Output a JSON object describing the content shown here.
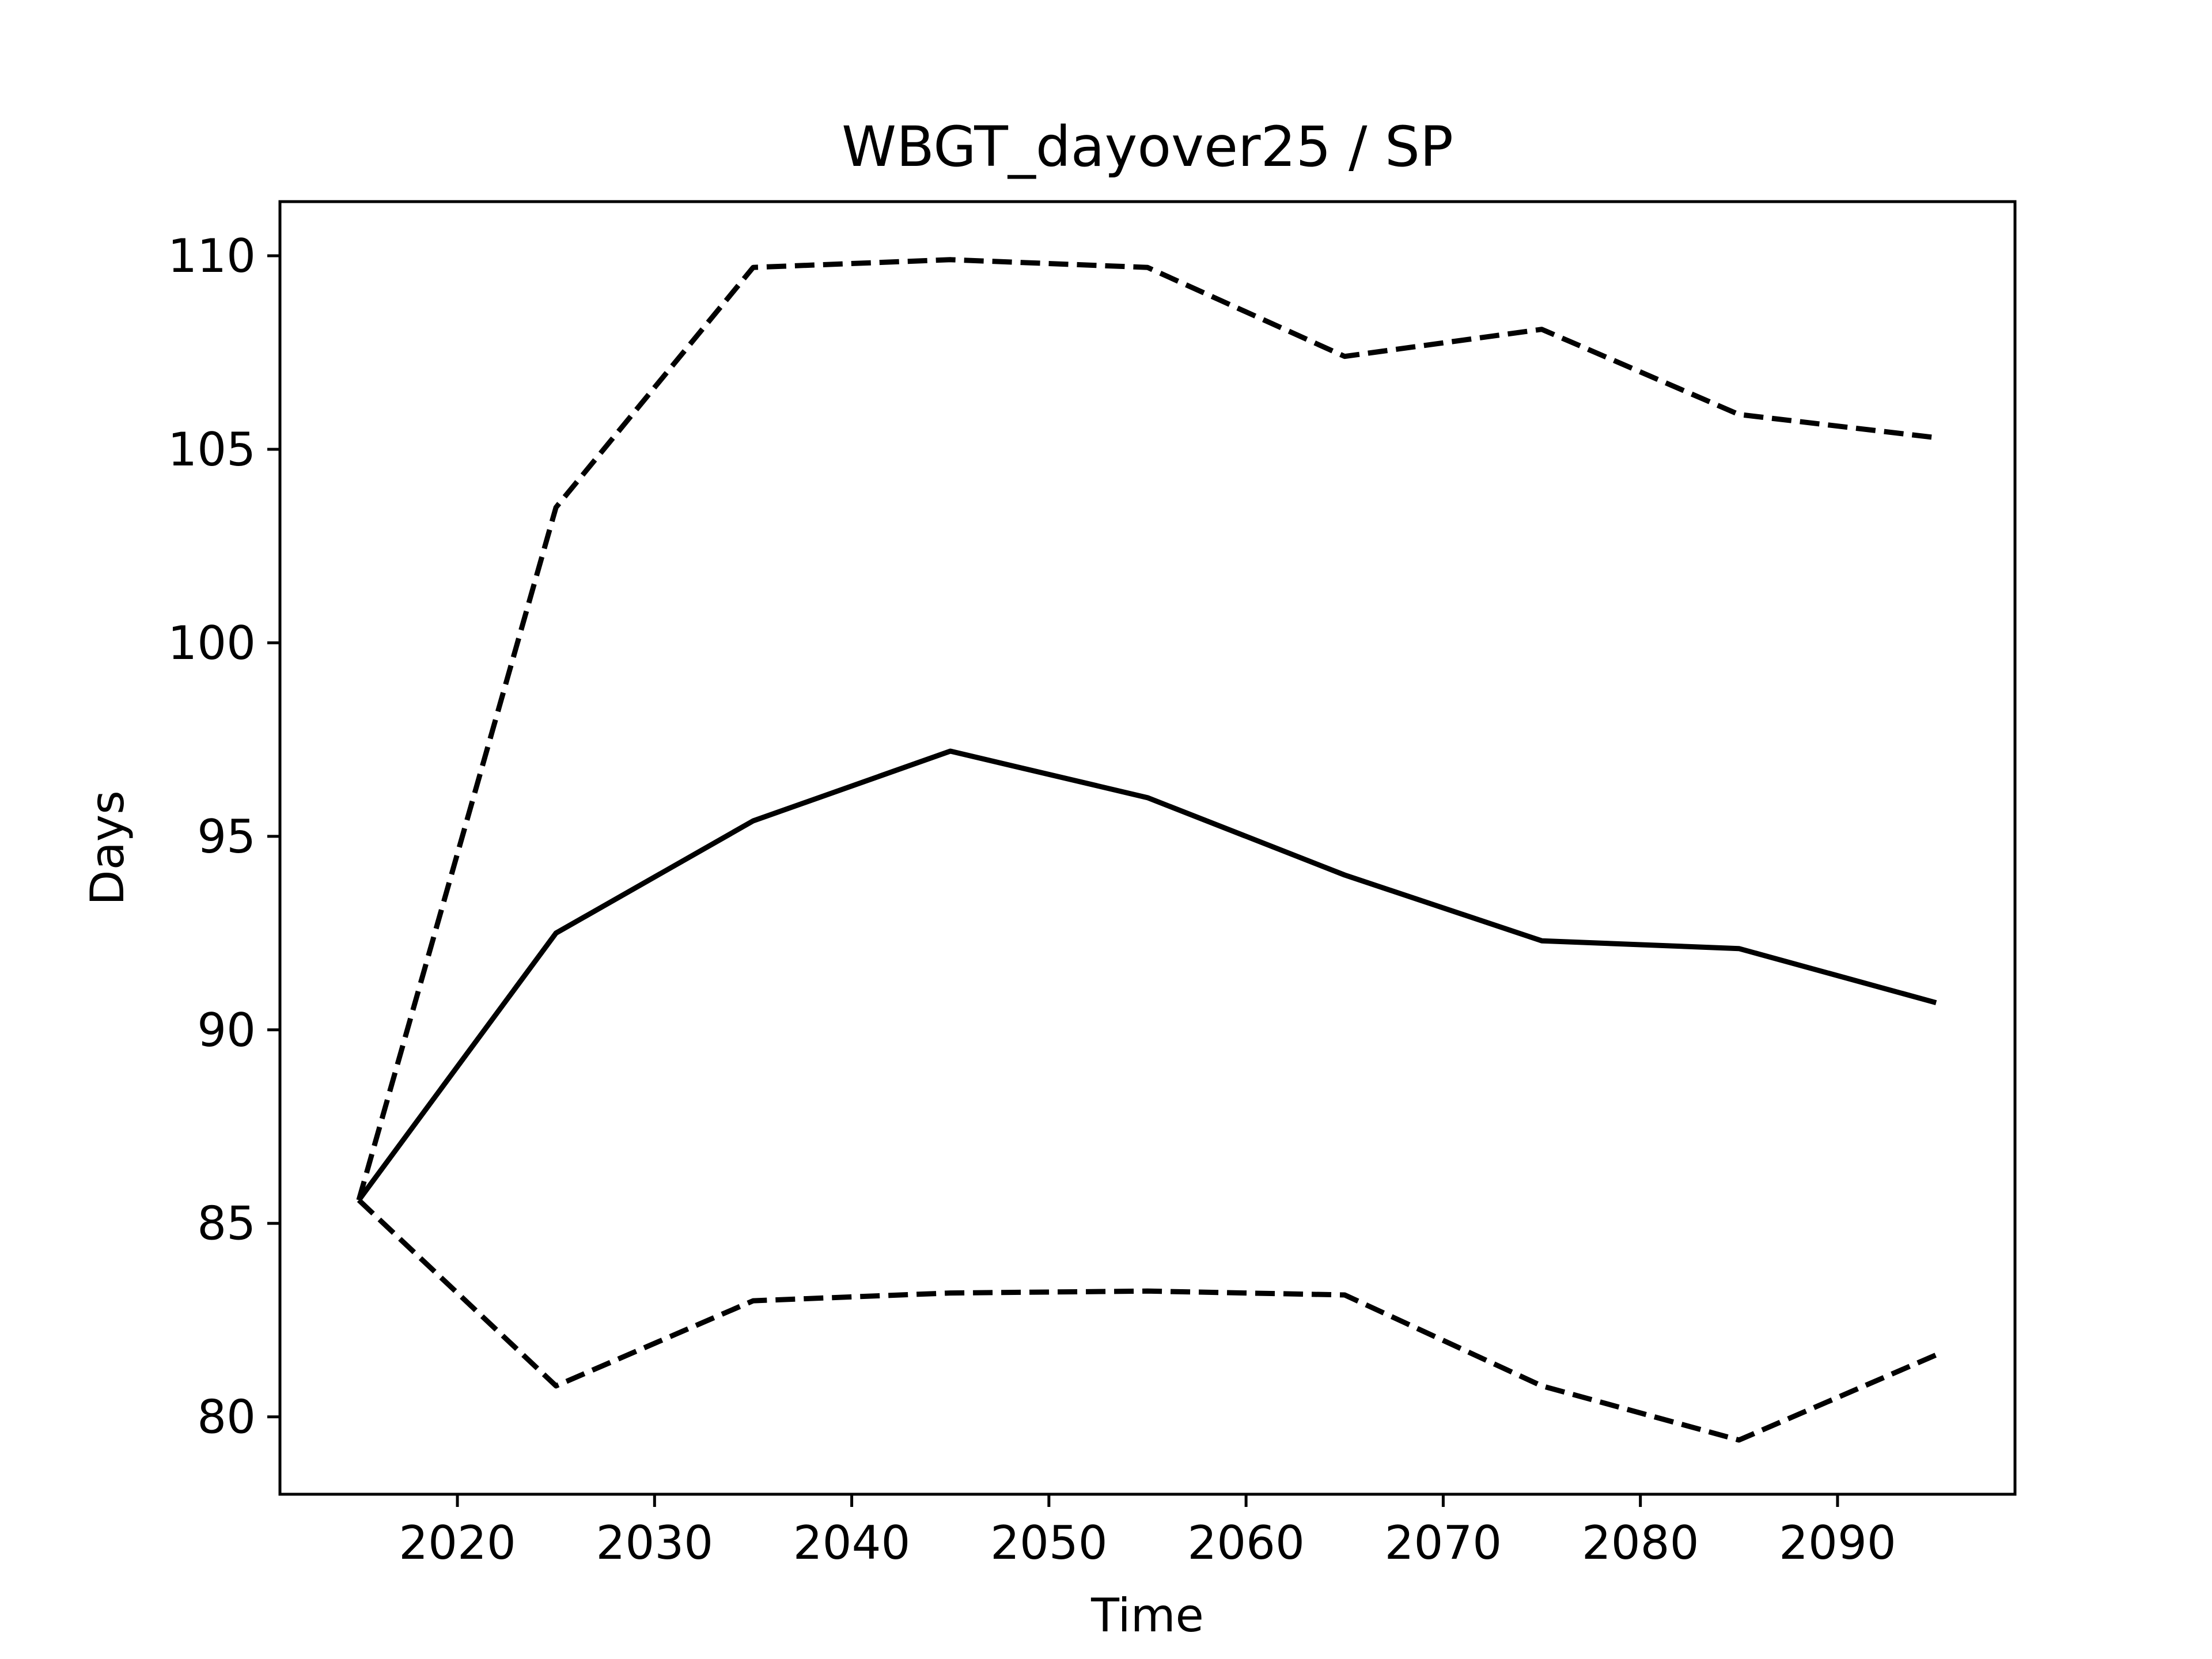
{
  "chart_data": {
    "type": "line",
    "title": "WBGT_dayover25 / SP",
    "xlabel": "Time",
    "ylabel": "Days",
    "x": [
      2015,
      2025,
      2035,
      2045,
      2055,
      2065,
      2075,
      2085,
      2095
    ],
    "xlim": [
      2011,
      2099
    ],
    "ylim": [
      78,
      111.4
    ],
    "xticks": [
      2020,
      2030,
      2040,
      2050,
      2060,
      2070,
      2080,
      2090
    ],
    "yticks": [
      80,
      85,
      90,
      95,
      100,
      105,
      110
    ],
    "grid": false,
    "series": [
      {
        "style": "solid",
        "values": [
          85.6,
          92.5,
          95.4,
          97.2,
          96.0,
          94.0,
          92.3,
          92.1,
          90.7
        ]
      },
      {
        "style": "dashed",
        "values": [
          85.6,
          103.5,
          109.7,
          109.9,
          109.7,
          107.4,
          108.1,
          105.9,
          105.3
        ]
      },
      {
        "style": "dashed",
        "values": [
          85.6,
          80.8,
          83.0,
          83.2,
          83.25,
          83.15,
          80.8,
          79.4,
          81.6
        ]
      }
    ],
    "colors": {
      "line": "#000000",
      "background": "#ffffff"
    }
  }
}
